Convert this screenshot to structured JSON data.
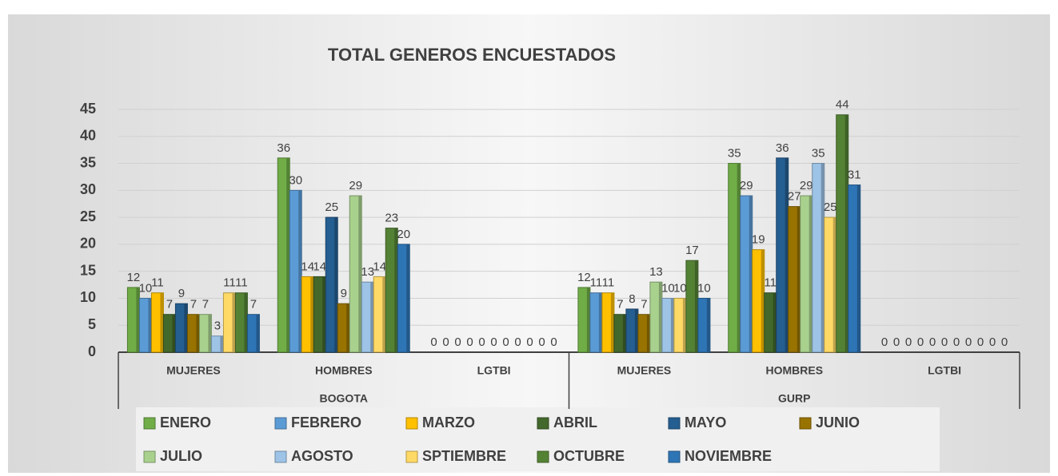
{
  "chart_data": {
    "type": "bar",
    "title": "TOTAL GENEROS ENCUESTADOS",
    "categories": [
      "MUJERES",
      "HOMBRES",
      "LGTBI",
      "MUJERES",
      "HOMBRES",
      "LGTBI"
    ],
    "groups": [
      "BOGOTA",
      "GURP"
    ],
    "series": [
      {
        "name": "ENERO",
        "color": "#70ad47",
        "values": [
          12,
          36,
          0,
          12,
          35,
          0
        ]
      },
      {
        "name": "FEBRERO",
        "color": "#5b9bd5",
        "values": [
          10,
          30,
          0,
          11,
          29,
          0
        ]
      },
      {
        "name": "MARZO",
        "color": "#ffc000",
        "values": [
          11,
          14,
          0,
          11,
          19,
          0
        ]
      },
      {
        "name": "ABRIL",
        "color": "#43682b",
        "values": [
          7,
          14,
          0,
          7,
          11,
          0
        ]
      },
      {
        "name": "MAYO",
        "color": "#255e91",
        "values": [
          9,
          25,
          0,
          8,
          36,
          0
        ]
      },
      {
        "name": "JUNIO",
        "color": "#997300",
        "values": [
          7,
          9,
          0,
          7,
          27,
          0
        ]
      },
      {
        "name": "JULIO",
        "color": "#a9d18e",
        "values": [
          7,
          29,
          0,
          13,
          29,
          0
        ]
      },
      {
        "name": "AGOSTO",
        "color": "#9dc3e6",
        "values": [
          3,
          13,
          0,
          10,
          35,
          0
        ]
      },
      {
        "name": "SPTIEMBRE",
        "color": "#ffd966",
        "values": [
          11,
          14,
          0,
          10,
          25,
          0
        ]
      },
      {
        "name": "OCTUBRE",
        "color": "#548235",
        "values": [
          11,
          23,
          0,
          17,
          44,
          0
        ]
      },
      {
        "name": "NOVIEMBRE",
        "color": "#2e75b6",
        "values": [
          7,
          20,
          0,
          10,
          31,
          0
        ]
      }
    ],
    "ylim": [
      0,
      45
    ],
    "yticks": [
      0,
      5,
      10,
      15,
      20,
      25,
      30,
      35,
      40,
      45
    ],
    "grid": true
  }
}
